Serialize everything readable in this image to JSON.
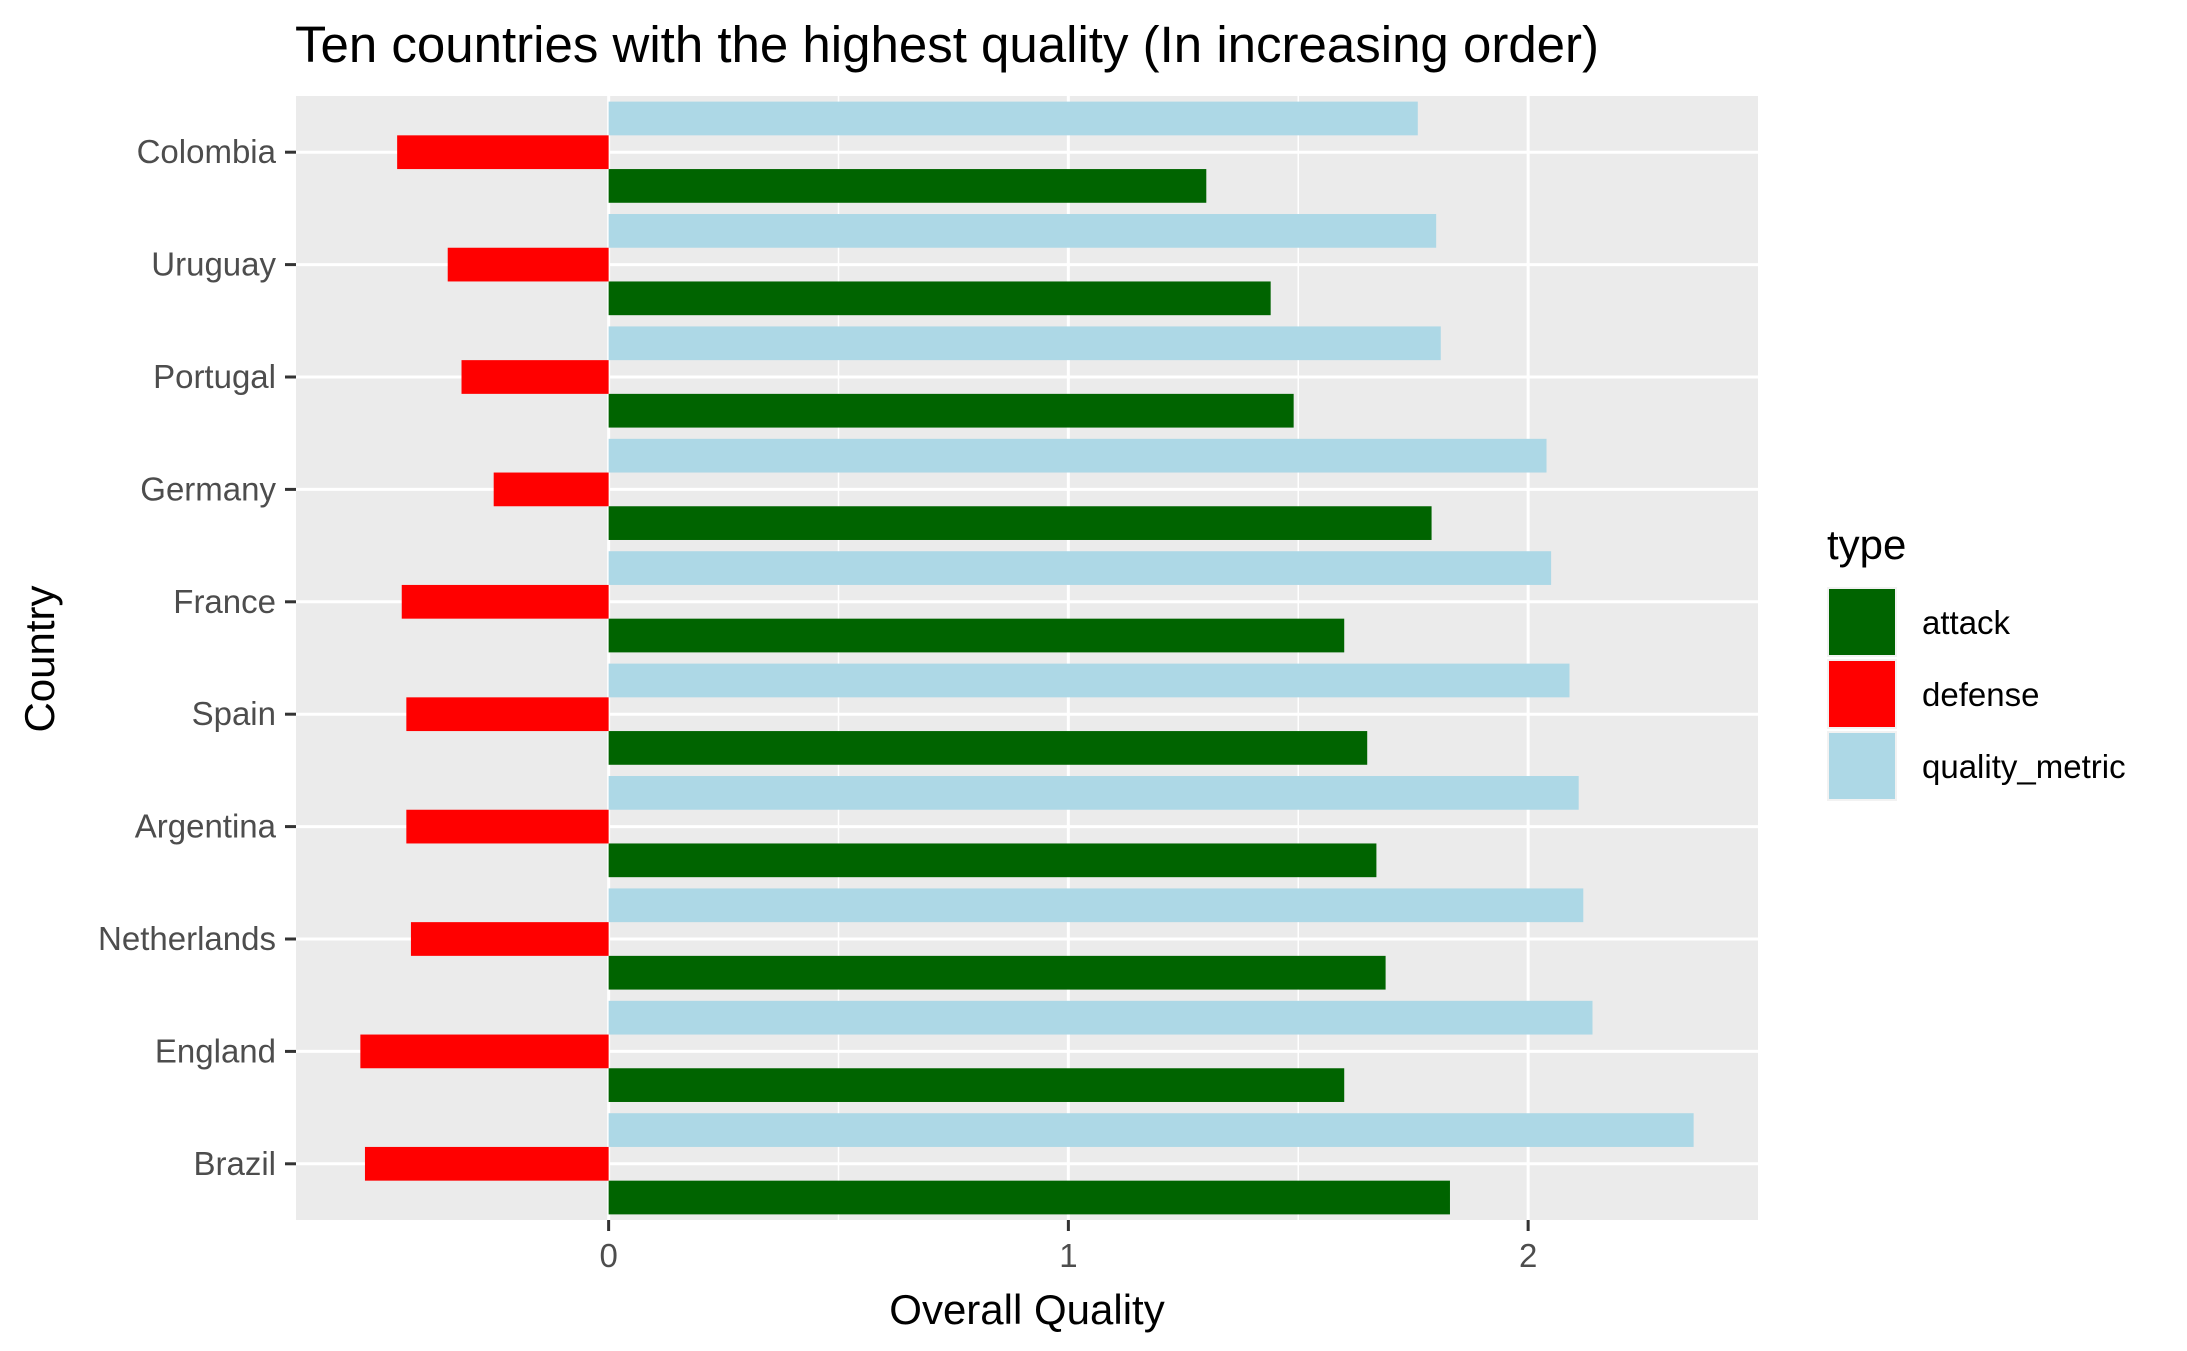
{
  "chart_data": {
    "type": "bar",
    "orientation": "horizontal",
    "title": "Ten countries with the highest quality (In increasing order)",
    "xlabel": "Overall Quality",
    "ylabel": "Country",
    "categories": [
      "Colombia",
      "Uruguay",
      "Portugal",
      "Germany",
      "France",
      "Spain",
      "Argentina",
      "Netherlands",
      "England",
      "Brazil"
    ],
    "series": [
      {
        "name": "attack",
        "color": "#006400",
        "values": [
          1.3,
          1.44,
          1.49,
          1.79,
          1.6,
          1.65,
          1.67,
          1.69,
          1.6,
          1.83
        ]
      },
      {
        "name": "defense",
        "color": "#ff0000",
        "values": [
          -0.46,
          -0.35,
          -0.32,
          -0.25,
          -0.45,
          -0.44,
          -0.44,
          -0.43,
          -0.54,
          -0.53
        ]
      },
      {
        "name": "quality_metric",
        "color": "#add8e6",
        "values": [
          1.76,
          1.8,
          1.81,
          2.04,
          2.05,
          2.09,
          2.11,
          2.12,
          2.14,
          2.36
        ]
      }
    ],
    "xlim": [
      -0.68,
      2.5
    ],
    "xticks": [
      "0",
      "1",
      "2"
    ],
    "xtick_values": [
      0,
      1,
      2
    ],
    "grid": true,
    "legend": {
      "title": "type",
      "position": "right",
      "entries": [
        "attack",
        "defense",
        "quality_metric"
      ]
    }
  }
}
